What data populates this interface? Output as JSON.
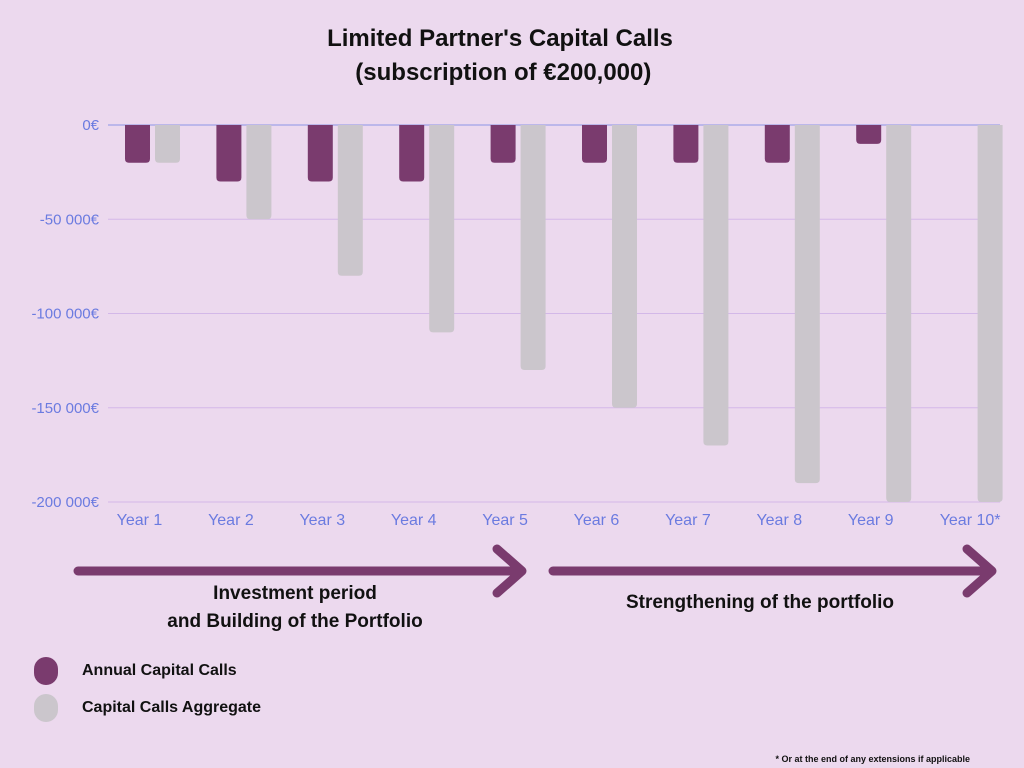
{
  "chart_data": {
    "type": "bar",
    "title": [
      "Limited Partner's Capital Calls",
      " (subscription of €200,000)"
    ],
    "categories": [
      "Year 1",
      "Year 2",
      "Year 3",
      "Year 4",
      "Year 5",
      "Year 6",
      "Year 7",
      "Year 8",
      "Year 9",
      "Year 10*"
    ],
    "series": [
      {
        "name": "Annual Capital Calls",
        "color": "#7a3b6e",
        "values": [
          -20000,
          -30000,
          -30000,
          -30000,
          -20000,
          -20000,
          -20000,
          -20000,
          -10000,
          0
        ]
      },
      {
        "name": "Capital Calls Aggregate",
        "color": "#cbc6cc",
        "values": [
          -20000,
          -50000,
          -80000,
          -110000,
          -130000,
          -150000,
          -170000,
          -190000,
          -200000,
          -200000
        ]
      }
    ],
    "yticks": [
      0,
      -50000,
      -100000,
      -150000,
      -200000
    ],
    "ytick_labels": [
      "0€",
      "-50 000€",
      "-100 000€",
      "-150 000€",
      "-200 000€"
    ],
    "ylim": [
      -200000,
      0
    ],
    "grid": true,
    "legend_position": "bottom-left",
    "colors": {
      "axis_text": "#6b7be0",
      "grid": "#d3b8e8",
      "arrow": "#7a3b6e"
    }
  },
  "periods": [
    {
      "label": "Investment period\nand Building of the Portfolio"
    },
    {
      "label": "Strengthening of the portfolio"
    }
  ],
  "footnote": "* Or at the end of any extensions if applicable"
}
